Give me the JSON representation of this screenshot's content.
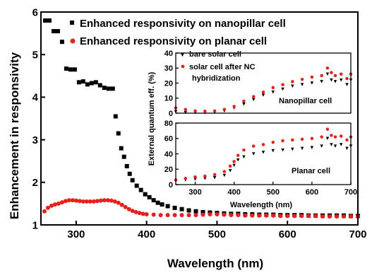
{
  "chart_data": [
    {
      "type": "scatter",
      "xlabel": "Wavelength (nm)",
      "ylabel": "Enhancement in responsivity",
      "xlim": [
        250,
        700
      ],
      "ylim": [
        1,
        6
      ],
      "xticks": [
        "300",
        "400",
        "500",
        "600",
        "700"
      ],
      "yticks": [
        "1",
        "2",
        "3",
        "4",
        "5",
        "6"
      ],
      "legend_position": "top-right",
      "series": [
        {
          "name": "Enhanced responsivity on nanopillar cell",
          "color": "#000000",
          "marker": "square",
          "x": [
            256,
            262,
            268,
            274,
            280,
            286,
            292,
            298,
            304,
            310,
            316,
            322,
            328,
            334,
            340,
            346,
            352,
            356,
            360,
            364,
            368,
            372,
            376,
            380,
            386,
            392,
            398,
            404,
            410,
            416,
            422,
            430,
            440,
            450,
            460,
            470,
            480,
            490,
            500,
            510,
            520,
            530,
            540,
            550,
            560,
            570,
            580,
            590,
            600,
            610,
            620,
            630,
            640,
            650,
            660,
            670,
            680,
            690,
            700
          ],
          "y": [
            5.8,
            5.8,
            5.55,
            5.55,
            5.3,
            4.67,
            4.65,
            4.65,
            4.35,
            4.37,
            4.3,
            4.33,
            4.35,
            4.28,
            4.22,
            4.2,
            4.2,
            3.55,
            3.15,
            2.8,
            2.6,
            2.38,
            2.2,
            2.05,
            1.92,
            1.82,
            1.72,
            1.65,
            1.58,
            1.52,
            1.48,
            1.44,
            1.4,
            1.37,
            1.34,
            1.32,
            1.3,
            1.29,
            1.28,
            1.27,
            1.26,
            1.26,
            1.25,
            1.25,
            1.24,
            1.24,
            1.24,
            1.23,
            1.23,
            1.23,
            1.23,
            1.22,
            1.22,
            1.22,
            1.22,
            1.22,
            1.22,
            1.21,
            1.21
          ]
        },
        {
          "name": "Enhanced responsivity on planar cell",
          "color": "#e8201c",
          "marker": "circle",
          "x": [
            255,
            260,
            265,
            270,
            275,
            280,
            285,
            290,
            295,
            300,
            305,
            310,
            315,
            320,
            325,
            330,
            335,
            340,
            345,
            350,
            355,
            360,
            365,
            370,
            375,
            380,
            385,
            390,
            395,
            400,
            410,
            420,
            430,
            440,
            450,
            460,
            470,
            480,
            490,
            500,
            510,
            520,
            530,
            540,
            550,
            560,
            570,
            580,
            590,
            600,
            610,
            620,
            630,
            640,
            650,
            660,
            670,
            680,
            690,
            700
          ],
          "y": [
            1.32,
            1.4,
            1.45,
            1.48,
            1.5,
            1.53,
            1.56,
            1.58,
            1.58,
            1.57,
            1.56,
            1.55,
            1.55,
            1.55,
            1.55,
            1.56,
            1.57,
            1.58,
            1.58,
            1.57,
            1.55,
            1.52,
            1.47,
            1.42,
            1.37,
            1.33,
            1.3,
            1.28,
            1.26,
            1.25,
            1.24,
            1.23,
            1.23,
            1.23,
            1.23,
            1.23,
            1.23,
            1.24,
            1.25,
            1.25,
            1.24,
            1.23,
            1.23,
            1.22,
            1.22,
            1.22,
            1.22,
            1.22,
            1.21,
            1.21,
            1.21,
            1.21,
            1.21,
            1.21,
            1.2,
            1.2,
            1.2,
            1.2,
            1.2,
            1.2
          ]
        }
      ]
    },
    {
      "type": "scatter",
      "panel": "Nanopillar cell",
      "panel_label": "Nanopillar cell",
      "ylabel": "External quantum eff. (%)",
      "xlim": [
        250,
        700
      ],
      "ylim": [
        0,
        40
      ],
      "yticks": [
        "0",
        "10",
        "20",
        "30",
        "40"
      ],
      "legend_position": "top-left",
      "legend_lines": [
        "bare solar cell",
        "solar cell after NC",
        "hybridization"
      ],
      "series": [
        {
          "name": "bare solar cell",
          "color": "#000000",
          "marker": "triangle-down",
          "x": [
            250,
            275,
            300,
            325,
            350,
            375,
            400,
            425,
            450,
            475,
            500,
            525,
            550,
            575,
            600,
            625,
            640,
            650,
            660,
            675,
            690,
            700
          ],
          "y": [
            1,
            0.5,
            0.3,
            0.3,
            0.5,
            1.5,
            3.5,
            6,
            9,
            12,
            14,
            16,
            18,
            19,
            20,
            21,
            26,
            22,
            21,
            22,
            19,
            22
          ]
        },
        {
          "name": "solar cell after NC hybridization",
          "color": "#e8201c",
          "marker": "circle",
          "x": [
            250,
            275,
            300,
            325,
            350,
            375,
            400,
            425,
            450,
            475,
            500,
            525,
            550,
            575,
            600,
            625,
            640,
            650,
            660,
            675,
            690,
            700
          ],
          "y": [
            3.5,
            2.5,
            1.5,
            1.3,
            1.5,
            2.5,
            4.5,
            8,
            11,
            14,
            17,
            19,
            21,
            22.5,
            24,
            25,
            30,
            27,
            25,
            26,
            23,
            26
          ]
        }
      ]
    },
    {
      "type": "scatter",
      "panel": "Planar cell",
      "panel_label": "Planar cell",
      "xlabel": "Wavelength (nm)",
      "xlim": [
        250,
        700
      ],
      "ylim": [
        0,
        80
      ],
      "xticks": [
        "300",
        "400",
        "500",
        "600",
        "700"
      ],
      "yticks": [
        "0",
        "20",
        "40",
        "60",
        "80"
      ],
      "series": [
        {
          "name": "bare solar cell",
          "color": "#000000",
          "marker": "triangle-down",
          "x": [
            250,
            275,
            300,
            325,
            350,
            375,
            390,
            400,
            410,
            425,
            450,
            475,
            500,
            525,
            550,
            575,
            600,
            625,
            640,
            650,
            660,
            675,
            690,
            700
          ],
          "y": [
            5,
            6,
            7,
            8,
            9,
            12,
            18,
            25,
            32,
            36,
            40,
            42,
            44,
            45,
            46,
            47,
            48,
            50,
            60,
            52,
            50,
            52,
            47,
            50
          ]
        },
        {
          "name": "solar cell after NC hybridization",
          "color": "#e8201c",
          "marker": "circle",
          "x": [
            250,
            275,
            300,
            325,
            350,
            375,
            390,
            400,
            410,
            425,
            450,
            475,
            500,
            525,
            550,
            575,
            600,
            625,
            640,
            650,
            660,
            675,
            690,
            700
          ],
          "y": [
            6,
            8,
            10,
            11,
            13,
            17,
            24,
            30,
            38,
            45,
            50,
            52,
            55,
            57,
            58,
            59,
            60,
            62,
            72,
            64,
            62,
            63,
            58,
            62
          ]
        }
      ]
    }
  ]
}
